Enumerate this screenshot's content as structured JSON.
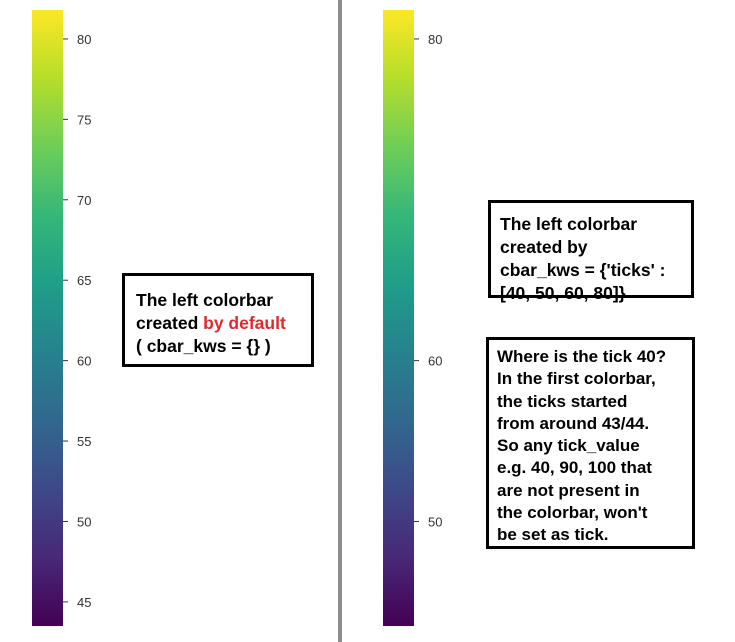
{
  "colors": {
    "divider": "#8c8c8c",
    "highlight": "#e1292d",
    "colormap": [
      "#440154",
      "#482878",
      "#3e4989",
      "#31688e",
      "#26828e",
      "#1f9e89",
      "#35b779",
      "#6ece58",
      "#b5de2b",
      "#fde725"
    ]
  },
  "chart_data": [
    {
      "type": "colorbar",
      "colormap": "viridis",
      "range": [
        43.5,
        81.8
      ],
      "ticks": [
        45,
        50,
        55,
        60,
        65,
        70,
        75,
        80
      ],
      "tick_labels": [
        "45",
        "50",
        "55",
        "60",
        "65",
        "70",
        "75",
        "80"
      ]
    },
    {
      "type": "colorbar",
      "colormap": "viridis",
      "range": [
        43.5,
        81.8
      ],
      "ticks": [
        50,
        60,
        80
      ],
      "tick_labels": [
        "50",
        "60",
        "80"
      ]
    }
  ],
  "notes": {
    "left": {
      "line1": "The left colorbar",
      "line2_prefix": "created ",
      "line2_highlight": "by default",
      "line3": "( cbar_kws = {} )"
    },
    "right_top": {
      "line1": "The left colorbar",
      "line2": "created by",
      "line3": "cbar_kws = {'ticks' :",
      "line4": "[40, 50, 60, 80]}"
    },
    "right_bottom": {
      "lines": [
        "Where is the tick 40?",
        "In the first colorbar,",
        "the ticks started",
        "from around 43/44.",
        "So any tick_value",
        "e.g. 40, 90, 100 that",
        "are not present in",
        "the colorbar, won't",
        "be set as tick."
      ]
    }
  }
}
